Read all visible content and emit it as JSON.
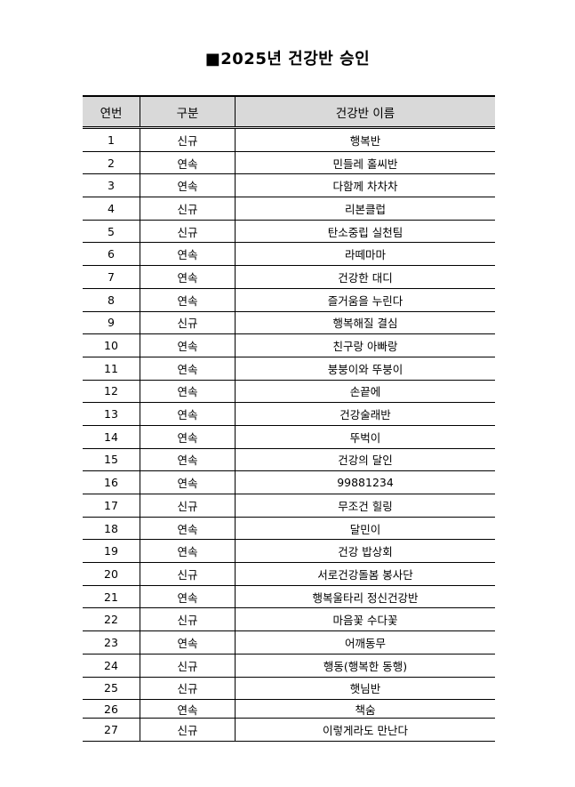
{
  "title": "■2025년 건강반 승인",
  "headers": [
    "연번",
    "구분",
    "건강반 이름"
  ],
  "rows": [
    [
      "1",
      "신규",
      "행복반"
    ],
    [
      "2",
      "연속",
      "민들레 홀씨반"
    ],
    [
      "3",
      "연속",
      "다함께 차차차"
    ],
    [
      "4",
      "신규",
      "리본클럽"
    ],
    [
      "5",
      "신규",
      "탄소중립 실천팀"
    ],
    [
      "6",
      "연속",
      "라떼마마"
    ],
    [
      "7",
      "연속",
      "건강한 대디"
    ],
    [
      "8",
      "연속",
      "즐거움을 누린다"
    ],
    [
      "9",
      "신규",
      "행복해질 결심"
    ],
    [
      "10",
      "연속",
      "친구랑 아빠랑"
    ],
    [
      "11",
      "연속",
      "붕붕이와 뚜붕이"
    ],
    [
      "12",
      "연속",
      "손끝에"
    ],
    [
      "13",
      "연속",
      "건강술래반"
    ],
    [
      "14",
      "연속",
      "뚜벅이"
    ],
    [
      "15",
      "연속",
      "건강의 달인"
    ],
    [
      "16",
      "연속",
      "99881234"
    ],
    [
      "17",
      "신규",
      "무조건 힐링"
    ],
    [
      "18",
      "연속",
      "달민이"
    ],
    [
      "19",
      "연속",
      "건강 밥상회"
    ],
    [
      "20",
      "신규",
      "서로건강돌봄 봉사단"
    ],
    [
      "21",
      "연속",
      "행복울타리 정신건강반"
    ],
    [
      "22",
      "신규",
      "마음꽃 수다꽃"
    ],
    [
      "23",
      "연속",
      "어깨동무"
    ],
    [
      "24",
      "신규",
      "행동(행복한 동행)"
    ],
    [
      "25",
      "신규",
      "햇님반"
    ],
    [
      "26",
      "연속",
      "책숨"
    ],
    [
      "27",
      "신규",
      "이렇게라도 만난다"
    ]
  ]
}
